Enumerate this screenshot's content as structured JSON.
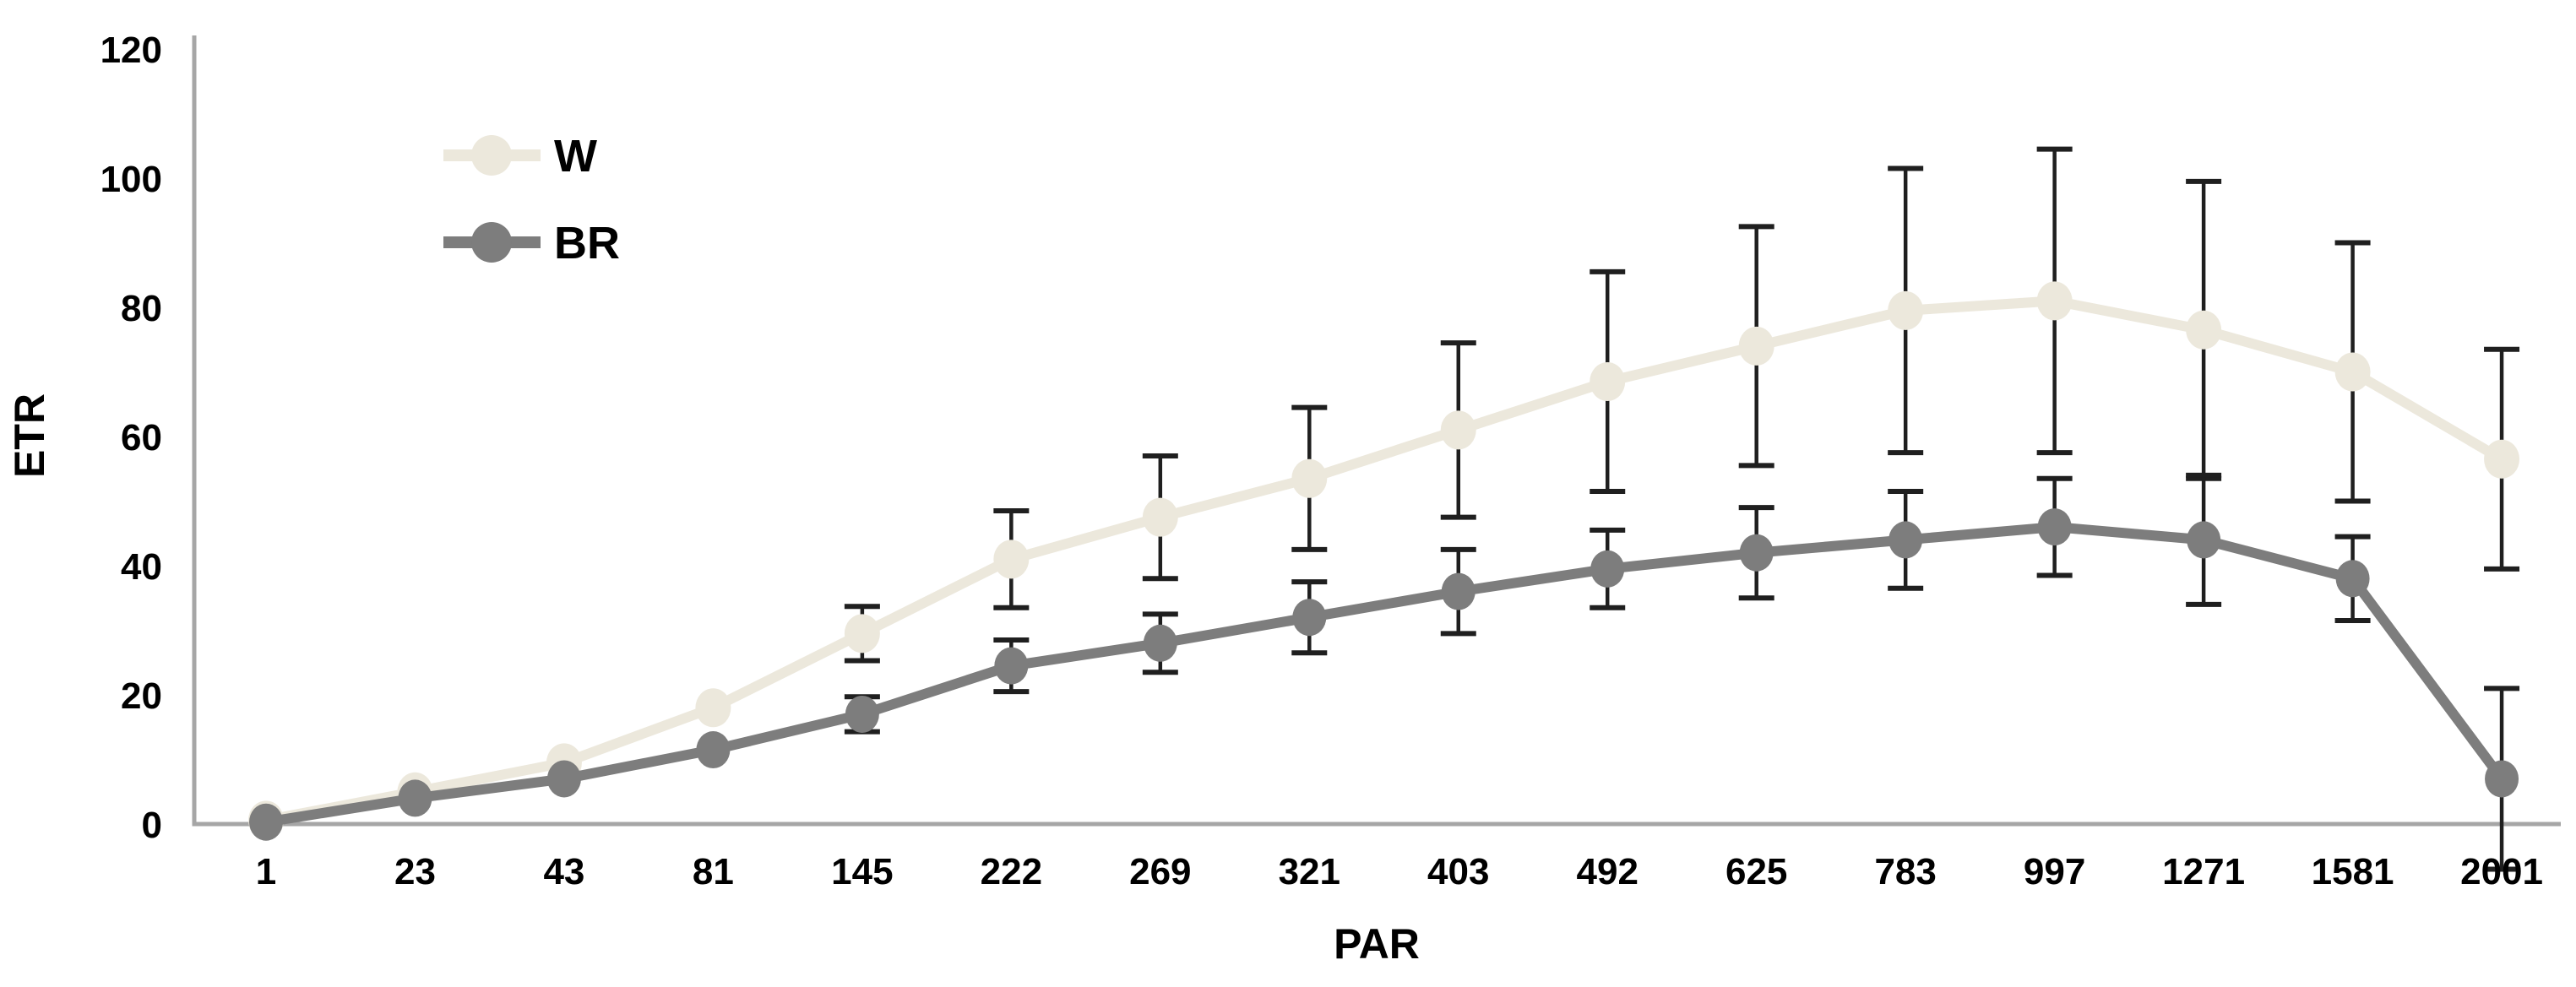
{
  "chart_data": {
    "type": "line",
    "title": "",
    "xlabel": "PAR",
    "ylabel": "ETR",
    "categories": [
      "1",
      "23",
      "43",
      "81",
      "145",
      "222",
      "269",
      "321",
      "403",
      "492",
      "625",
      "783",
      "997",
      "1271",
      "1581",
      "2001"
    ],
    "y_ticks": [
      "0",
      "20",
      "40",
      "60",
      "80",
      "100",
      "120"
    ],
    "ylim": [
      0,
      120
    ],
    "grid": false,
    "legend_position": "inside-top-left",
    "error_bars": true,
    "series": [
      {
        "name": "W",
        "color": "#ECE8DC",
        "values": [
          0.6,
          5,
          9.5,
          18,
          29.5,
          41,
          47.5,
          53.5,
          61,
          68.5,
          74,
          79.5,
          81,
          76.5,
          70,
          56.5
        ],
        "errors": [
          0,
          0,
          0,
          0,
          4.2,
          7.5,
          9.5,
          11,
          13.5,
          17,
          18.5,
          22,
          23.5,
          23,
          20,
          17
        ]
      },
      {
        "name": "BR",
        "color": "#7D7D7D",
        "values": [
          0.3,
          4,
          7,
          11.5,
          17,
          24.5,
          28,
          32,
          36,
          39.5,
          42,
          44,
          46,
          44,
          38,
          7
        ],
        "errors": [
          0,
          0,
          0,
          0,
          2.7,
          4,
          4.5,
          5.5,
          6.5,
          6,
          7,
          7.5,
          7.5,
          10,
          6.5,
          14
        ]
      }
    ],
    "error_bar_color": "#1f1f1f",
    "axis_color": "#A6A6A6",
    "text_color": "#000000"
  }
}
